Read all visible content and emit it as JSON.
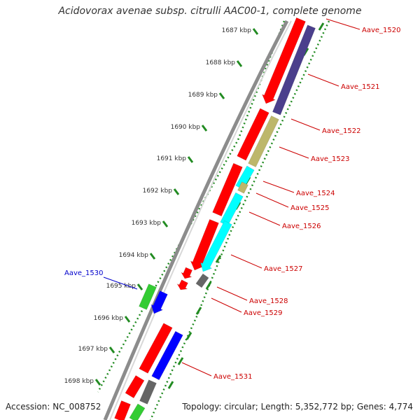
{
  "title": "Acidovorax avenae subsp. citrulli AAC00-1, complete genome",
  "footer": {
    "accession": "Accession: NC_008752",
    "summary": "Topology: circular; Length: 5,352,772 bp; Genes: 4,774"
  },
  "ticks": [
    {
      "label": "1687 kbp"
    },
    {
      "label": "1688 kbp"
    },
    {
      "label": "1689 kbp"
    },
    {
      "label": "1690 kbp"
    },
    {
      "label": "1691 kbp"
    },
    {
      "label": "1692 kbp"
    },
    {
      "label": "1693 kbp"
    },
    {
      "label": "1694 kbp"
    },
    {
      "label": "1695 kbp"
    },
    {
      "label": "1696 kbp"
    },
    {
      "label": "1697 kbp"
    },
    {
      "label": "1698 kbp"
    }
  ],
  "genes": [
    {
      "name": "Aave_1520",
      "color": "#cc0000"
    },
    {
      "name": "Aave_1521",
      "color": "#cc0000"
    },
    {
      "name": "Aave_1522",
      "color": "#cc0000"
    },
    {
      "name": "Aave_1523",
      "color": "#cc0000"
    },
    {
      "name": "Aave_1524",
      "color": "#cc0000"
    },
    {
      "name": "Aave_1525",
      "color": "#cc0000"
    },
    {
      "name": "Aave_1526",
      "color": "#cc0000"
    },
    {
      "name": "Aave_1527",
      "color": "#cc0000"
    },
    {
      "name": "Aave_1528",
      "color": "#cc0000"
    },
    {
      "name": "Aave_1529",
      "color": "#cc0000"
    },
    {
      "name": "Aave_1530",
      "color": "#0000cc"
    },
    {
      "name": "Aave_1531",
      "color": "#cc0000"
    }
  ],
  "colors": {
    "cds_red": "#ff0000",
    "cog_purple": "#4b3f8c",
    "cog_khaki": "#bdb76b",
    "cog_cyan": "#00ffff",
    "cog_gray": "#666666",
    "cog_blue": "#0000ff",
    "cog_green": "#33cc33",
    "backbone": "#8c8c8c",
    "tick_green": "#228b22"
  }
}
